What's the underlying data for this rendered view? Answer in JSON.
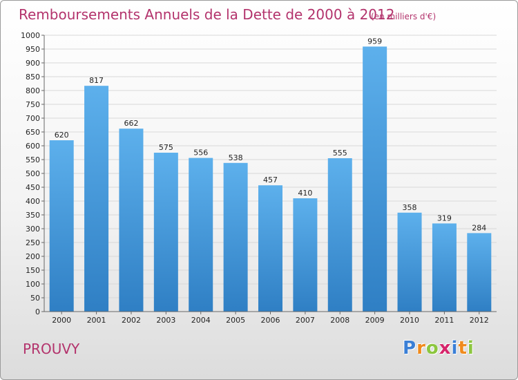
{
  "chart_data": {
    "type": "bar",
    "title": "Remboursements Annuels de la Dette de 2000 à 2012",
    "unit": "(en milliers d'€)",
    "categories": [
      "2000",
      "2001",
      "2002",
      "2003",
      "2004",
      "2005",
      "2006",
      "2007",
      "2008",
      "2009",
      "2010",
      "2011",
      "2012"
    ],
    "values": [
      620,
      817,
      662,
      575,
      556,
      538,
      457,
      410,
      555,
      959,
      358,
      319,
      284
    ],
    "ylim": [
      0,
      1000
    ],
    "ytick_step": 50,
    "grid": true,
    "xlabel": "",
    "ylabel": "",
    "bar_color": "#3a95dc"
  },
  "place_name": "PROUVY",
  "logo": {
    "letters": [
      "P",
      "r",
      "o",
      "x",
      "i",
      "t",
      "i"
    ],
    "colors": [
      "#3a7fd6",
      "#f08a1c",
      "#8cc63f",
      "#d6256b",
      "#3a7fd6",
      "#f08a1c",
      "#8cc63f"
    ]
  }
}
